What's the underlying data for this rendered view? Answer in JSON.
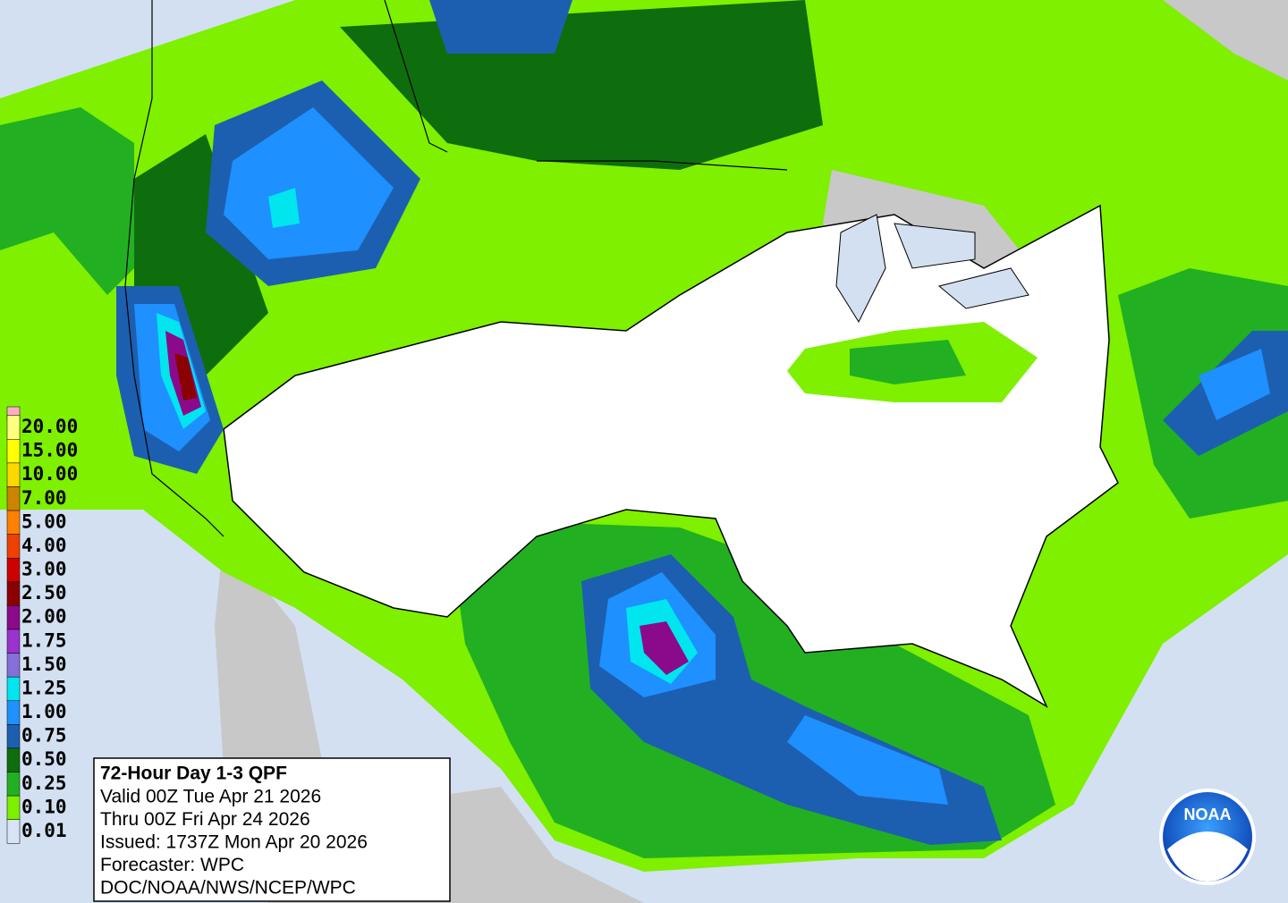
{
  "legend": {
    "items": [
      {
        "label": "20.00",
        "color": "#ffff80"
      },
      {
        "label": "15.00",
        "color": "#ffff00"
      },
      {
        "label": "10.00",
        "color": "#ffd700"
      },
      {
        "label": "7.00",
        "color": "#cd8500"
      },
      {
        "label": "5.00",
        "color": "#ff7f00"
      },
      {
        "label": "4.00",
        "color": "#ee4000"
      },
      {
        "label": "3.00",
        "color": "#cd0000"
      },
      {
        "label": "2.50",
        "color": "#8b0000"
      },
      {
        "label": "2.00",
        "color": "#8b0a8b"
      },
      {
        "label": "1.75",
        "color": "#9a32cd"
      },
      {
        "label": "1.50",
        "color": "#8470d8"
      },
      {
        "label": "1.25",
        "color": "#00e5ee"
      },
      {
        "label": "1.00",
        "color": "#1e90ff"
      },
      {
        "label": "0.75",
        "color": "#1c5fb0"
      },
      {
        "label": "0.50",
        "color": "#0e6e0e"
      },
      {
        "label": "0.25",
        "color": "#22b022"
      },
      {
        "label": "0.10",
        "color": "#7cf000"
      },
      {
        "label": "0.01",
        "color": "#d6e4f6"
      }
    ]
  },
  "info_box": {
    "title": "72-Hour Day 1-3 QPF",
    "lines": [
      "Valid 00Z Tue Apr 21 2026",
      "Thru 00Z Fri Apr 24 2026",
      "Issued: 1737Z Mon Apr 20 2026",
      "Forecaster: WPC",
      "DOC/NOAA/NWS/NCEP/WPC"
    ]
  },
  "logo": {
    "text": "NOAA"
  }
}
